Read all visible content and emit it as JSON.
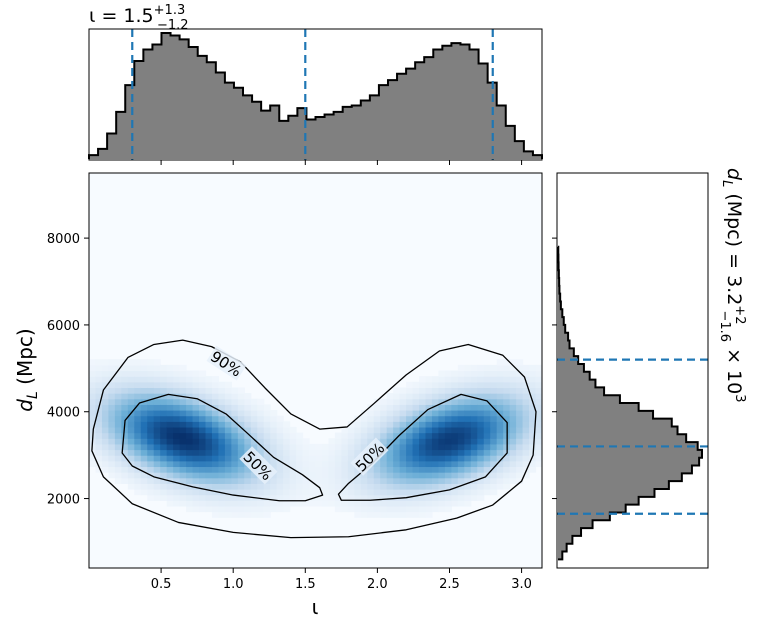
{
  "chart_data": {
    "type": "corner-plot",
    "colors": {
      "histogram_fill": "#808080",
      "histogram_edge": "#000000",
      "quantile_line": "#1f77b4",
      "density_cmap": [
        "#f7fbff",
        "#c6dbef",
        "#6baed6",
        "#2171b5",
        "#08306b"
      ],
      "contour": "#000000"
    },
    "top_marginal": {
      "parameter": "ι",
      "title": {
        "base": "ι = 1.5",
        "sup": "+1.3",
        "sub": "−1.2"
      },
      "xlim": [
        0.0,
        3.14159
      ],
      "bins": [
        0.0,
        0.0628,
        0.1257,
        0.1885,
        0.2513,
        0.3142,
        0.377,
        0.4398,
        0.5027,
        0.5655,
        0.6283,
        0.6912,
        0.754,
        0.8168,
        0.8796,
        0.9425,
        1.0053,
        1.0681,
        1.131,
        1.1938,
        1.2566,
        1.3195,
        1.3823,
        1.4451,
        1.508,
        1.5708,
        1.6336,
        1.6965,
        1.7593,
        1.8221,
        1.885,
        1.9478,
        2.0106,
        2.0735,
        2.1363,
        2.1991,
        2.2619,
        2.3248,
        2.3876,
        2.4504,
        2.5133,
        2.5761,
        2.6389,
        2.7018,
        2.7646,
        2.8274,
        2.8903,
        2.9531,
        3.0159,
        3.0788
      ],
      "counts": [
        0.03,
        0.08,
        0.2,
        0.37,
        0.58,
        0.77,
        0.86,
        0.9,
        0.99,
        0.97,
        0.94,
        0.88,
        0.81,
        0.76,
        0.68,
        0.6,
        0.56,
        0.5,
        0.45,
        0.38,
        0.42,
        0.3,
        0.34,
        0.4,
        0.31,
        0.33,
        0.35,
        0.37,
        0.41,
        0.42,
        0.46,
        0.5,
        0.58,
        0.62,
        0.67,
        0.71,
        0.76,
        0.8,
        0.86,
        0.89,
        0.91,
        0.9,
        0.86,
        0.75,
        0.6,
        0.42,
        0.26,
        0.14,
        0.06,
        0.03
      ],
      "quantiles": [
        0.3,
        1.5,
        2.8
      ]
    },
    "right_marginal": {
      "parameter": "d_L",
      "title": {
        "base": "d",
        "sub_base": "L",
        "rest": " (Mpc) = 3.2",
        "sup": "+2",
        "sub": "−1.6",
        "suffix": " × 10",
        "exp": "3"
      },
      "ylim": [
        400,
        9500
      ],
      "bin_start": 600,
      "bin_width": 180,
      "counts": [
        0.03,
        0.06,
        0.1,
        0.16,
        0.24,
        0.36,
        0.47,
        0.56,
        0.67,
        0.77,
        0.86,
        0.93,
        0.98,
        1.0,
        0.97,
        0.89,
        0.83,
        0.79,
        0.66,
        0.56,
        0.43,
        0.32,
        0.26,
        0.22,
        0.18,
        0.14,
        0.11,
        0.08,
        0.07,
        0.05,
        0.04,
        0.03,
        0.02,
        0.015,
        0.01,
        0.008,
        0.006,
        0.004,
        0.003,
        0.002
      ],
      "quantiles": [
        1650,
        3200,
        5200
      ]
    },
    "joint": {
      "xlabel": "ι",
      "ylabel": {
        "base": "d",
        "sub": "L",
        "rest": " (Mpc)"
      },
      "xlim": [
        0.0,
        3.14159
      ],
      "ylim": [
        400,
        9500
      ],
      "xticks": [
        0.5,
        1.0,
        1.5,
        2.0,
        2.5,
        3.0
      ],
      "xtick_labels": [
        "0.5",
        "1.0",
        "1.5",
        "2.0",
        "2.5",
        "3.0"
      ],
      "yticks": [
        2000,
        4000,
        6000,
        8000
      ],
      "ytick_labels": [
        "2000",
        "4000",
        "6000",
        "8000"
      ],
      "density_modes": [
        {
          "x": 0.65,
          "y": 3400,
          "sx": 0.33,
          "sy": 650,
          "rho": -0.45,
          "w": 1.0
        },
        {
          "x": 2.5,
          "y": 3350,
          "sx": 0.33,
          "sy": 650,
          "rho": 0.45,
          "w": 0.95
        }
      ],
      "contours": [
        {
          "level": "90%",
          "label": "90%",
          "label_pos": {
            "x": 0.95,
            "y": 5100
          },
          "label_angle": 33,
          "path": [
            [
              0.03,
              3600
            ],
            [
              0.1,
              4500
            ],
            [
              0.27,
              5250
            ],
            [
              0.45,
              5550
            ],
            [
              0.65,
              5650
            ],
            [
              0.85,
              5500
            ],
            [
              1.05,
              5150
            ],
            [
              1.22,
              4550
            ],
            [
              1.4,
              3950
            ],
            [
              1.6,
              3600
            ],
            [
              1.79,
              3650
            ],
            [
              1.98,
              4200
            ],
            [
              2.2,
              4850
            ],
            [
              2.43,
              5400
            ],
            [
              2.63,
              5550
            ],
            [
              2.87,
              5300
            ],
            [
              3.02,
              4800
            ],
            [
              3.1,
              4000
            ],
            [
              3.08,
              3000
            ],
            [
              3.0,
              2400
            ],
            [
              2.8,
              1850
            ],
            [
              2.55,
              1550
            ],
            [
              2.2,
              1280
            ],
            [
              1.8,
              1120
            ],
            [
              1.4,
              1100
            ],
            [
              1.0,
              1220
            ],
            [
              0.62,
              1450
            ],
            [
              0.3,
              1880
            ],
            [
              0.1,
              2500
            ],
            [
              0.02,
              3100
            ]
          ]
        },
        {
          "level": "50%",
          "label": "50%",
          "label_pos": {
            "x": 1.17,
            "y": 2750
          },
          "label_angle": 45,
          "path": [
            [
              0.23,
              3050
            ],
            [
              0.25,
              3800
            ],
            [
              0.35,
              4200
            ],
            [
              0.55,
              4400
            ],
            [
              0.75,
              4300
            ],
            [
              0.95,
              3950
            ],
            [
              1.1,
              3500
            ],
            [
              1.28,
              2950
            ],
            [
              1.48,
              2550
            ],
            [
              1.6,
              2250
            ],
            [
              1.62,
              2080
            ],
            [
              1.5,
              1950
            ],
            [
              1.32,
              1950
            ],
            [
              1.0,
              2080
            ],
            [
              0.72,
              2270
            ],
            [
              0.45,
              2500
            ],
            [
              0.3,
              2750
            ]
          ]
        },
        {
          "level": "50%",
          "label": "50%",
          "label_pos": {
            "x": 1.95,
            "y": 2950
          },
          "label_angle": -45,
          "path": [
            [
              1.73,
              2100
            ],
            [
              1.8,
              2350
            ],
            [
              1.96,
              2800
            ],
            [
              2.15,
              3450
            ],
            [
              2.35,
              4050
            ],
            [
              2.58,
              4400
            ],
            [
              2.76,
              4250
            ],
            [
              2.9,
              3750
            ],
            [
              2.9,
              3050
            ],
            [
              2.75,
              2500
            ],
            [
              2.5,
              2200
            ],
            [
              2.2,
              2020
            ],
            [
              1.95,
              1960
            ],
            [
              1.75,
              1960
            ]
          ]
        }
      ]
    }
  }
}
